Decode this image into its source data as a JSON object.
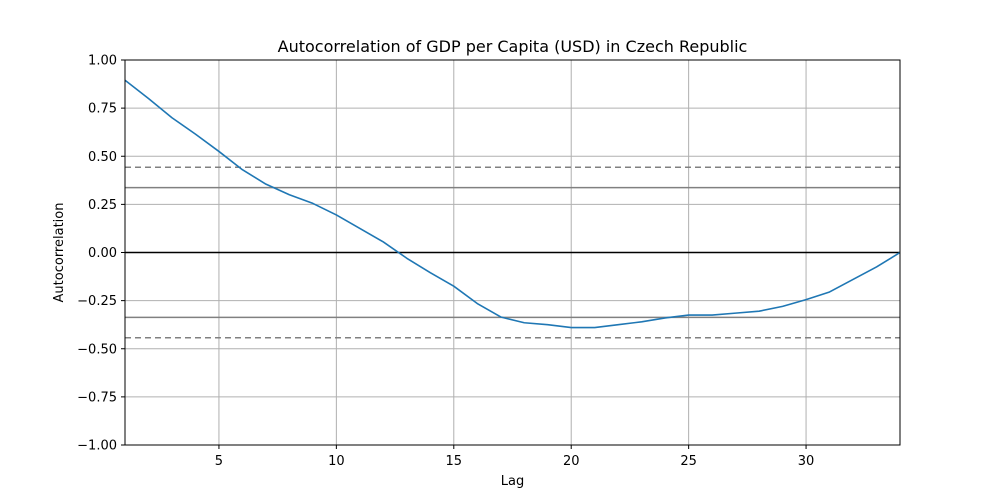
{
  "chart_data": {
    "type": "line",
    "title": "Autocorrelation of GDP per Capita (USD) in Czech Republic",
    "xlabel": "Lag",
    "ylabel": "Autocorrelation",
    "xlim": [
      1,
      34
    ],
    "ylim": [
      -1.0,
      1.0
    ],
    "grid": true,
    "x_ticks": [
      5,
      10,
      15,
      20,
      25,
      30
    ],
    "y_ticks": [
      -1.0,
      -0.75,
      -0.5,
      -0.25,
      0.0,
      0.25,
      0.5,
      0.75,
      1.0
    ],
    "x_tick_labels": [
      "5",
      "10",
      "15",
      "20",
      "25",
      "30"
    ],
    "y_tick_labels": [
      "−1.00",
      "−0.75",
      "−0.50",
      "−0.25",
      "0.00",
      "0.25",
      "0.50",
      "0.75",
      "1.00"
    ],
    "series": [
      {
        "color": "#1f77b4",
        "x": [
          1,
          2,
          3,
          4,
          5,
          6,
          7,
          8,
          9,
          10,
          11,
          12,
          13,
          14,
          15,
          16,
          17,
          18,
          19,
          20,
          21,
          22,
          23,
          24,
          25,
          26,
          27,
          28,
          29,
          30,
          31,
          32,
          33,
          34
        ],
        "values": [
          0.895,
          0.8,
          0.7,
          0.615,
          0.525,
          0.43,
          0.355,
          0.3,
          0.255,
          0.195,
          0.125,
          0.055,
          -0.03,
          -0.105,
          -0.175,
          -0.265,
          -0.335,
          -0.365,
          -0.375,
          -0.39,
          -0.39,
          -0.375,
          -0.36,
          -0.34,
          -0.325,
          -0.325,
          -0.315,
          -0.305,
          -0.28,
          -0.245,
          -0.205,
          -0.14,
          -0.075,
          0.0
        ]
      }
    ],
    "reference_lines": [
      {
        "y": 0.443,
        "style": "dashed",
        "color": "#808080"
      },
      {
        "y": 0.337,
        "style": "solid",
        "color": "#808080"
      },
      {
        "y": 0.0,
        "style": "solid",
        "color": "#000000"
      },
      {
        "y": -0.337,
        "style": "solid",
        "color": "#808080"
      },
      {
        "y": -0.443,
        "style": "dashed",
        "color": "#808080"
      }
    ]
  }
}
